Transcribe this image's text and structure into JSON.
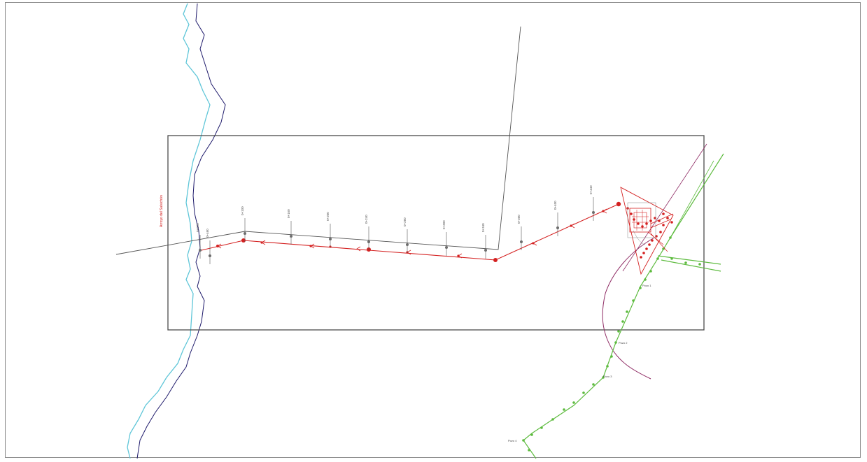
{
  "drawing": {
    "stream_label": "Arroyo del Salsichón",
    "colors": {
      "river_light": "#5fc6d8",
      "river_dark": "#1e1a6b",
      "pipeline": "#d42020",
      "green_line": "#5dbb3e",
      "purple_line": "#8e2a63",
      "grey_line": "#6d6d6d",
      "frame": "#555555"
    },
    "chainage_labels": [
      "0+020",
      "0+100",
      "0+160",
      "0+200",
      "0+240",
      "0+260",
      "0+300",
      "0+340",
      "0+360",
      "0+400",
      "0+440",
      "0+460"
    ],
    "green_node_labels": [
      "Pozo 1",
      "Pozo 2",
      "Pozo 3",
      "Pozo 4"
    ]
  }
}
